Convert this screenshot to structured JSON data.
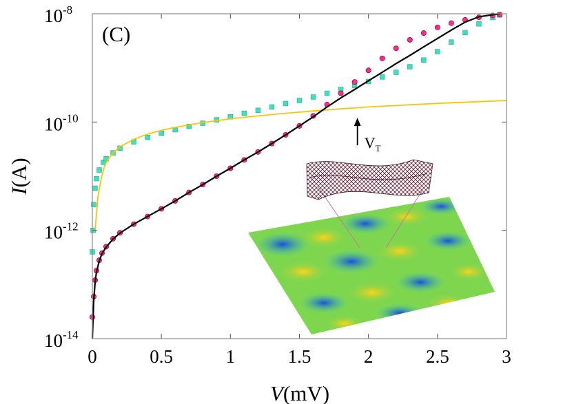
{
  "chart_data": {
    "type": "scatter",
    "panel_label": "(C)",
    "xlabel_var": "V",
    "xlabel_unit": "(mV)",
    "ylabel_var": "I",
    "ylabel_unit": "(A)",
    "xlim": [
      0,
      3
    ],
    "ylim": [
      1e-14,
      1e-08
    ],
    "y_scale": "log",
    "x_ticks": [
      "0",
      "0.5",
      "1",
      "1.5",
      "2",
      "2.5",
      "3"
    ],
    "x_tick_values": [
      0,
      0.5,
      1,
      1.5,
      2,
      2.5,
      3
    ],
    "y_ticks": [
      {
        "base": "10",
        "exp": "-14",
        "value": 1e-14
      },
      {
        "base": "10",
        "exp": "-12",
        "value": 1e-12
      },
      {
        "base": "10",
        "exp": "-10",
        "value": 1e-10
      },
      {
        "base": "10",
        "exp": "-8",
        "value": 1e-08
      }
    ],
    "annotation": {
      "text_main": "V",
      "text_sub": "T",
      "x": 1.92,
      "y": 1.2e-10
    },
    "colors": {
      "pink": "#ff2e8b",
      "cyan": "#3ee0c0",
      "yellow": "#f5c800",
      "black": "#000000"
    },
    "series": [
      {
        "marker": "circle",
        "color": "#ff2e8b",
        "x": [
          0.0,
          0.01,
          0.02,
          0.03,
          0.05,
          0.07,
          0.1,
          0.15,
          0.2,
          0.3,
          0.4,
          0.5,
          0.6,
          0.7,
          0.8,
          0.9,
          1.0,
          1.1,
          1.2,
          1.3,
          1.4,
          1.5,
          1.6,
          1.7,
          1.8,
          1.9,
          2.0,
          2.1,
          2.2,
          2.3,
          2.4,
          2.5,
          2.6,
          2.7,
          2.8,
          2.9,
          2.95
        ],
        "y": [
          2.5e-14,
          6e-14,
          1.2e-13,
          1.8e-13,
          2.8e-13,
          3.8e-13,
          5e-13,
          7e-13,
          9e-13,
          1.3e-12,
          1.8e-12,
          2.5e-12,
          3.5e-12,
          5e-12,
          7e-12,
          1e-11,
          1.4e-11,
          2e-11,
          2.8e-11,
          4e-11,
          5.8e-11,
          8.5e-11,
          1.3e-10,
          2.1e-10,
          3.4e-10,
          5.5e-10,
          9e-10,
          1.5e-09,
          2.3e-09,
          3.3e-09,
          4.4e-09,
          5.6e-09,
          6.7e-09,
          7.7e-09,
          8.6e-09,
          9.3e-09,
          9.6e-09
        ]
      },
      {
        "marker": "square",
        "color": "#3ee0c0",
        "x": [
          0.0,
          0.005,
          0.01,
          0.02,
          0.03,
          0.05,
          0.08,
          0.1,
          0.15,
          0.2,
          0.3,
          0.4,
          0.5,
          0.6,
          0.7,
          0.8,
          0.9,
          1.0,
          1.1,
          1.2,
          1.3,
          1.4,
          1.5,
          1.6,
          1.7,
          1.8,
          1.9,
          2.0,
          2.1,
          2.2,
          2.3,
          2.4,
          2.5,
          2.6,
          2.7,
          2.8,
          2.9,
          2.95
        ],
        "y": [
          4e-13,
          1e-12,
          3e-12,
          6e-12,
          9e-12,
          1.3e-11,
          1.8e-11,
          2.1e-11,
          2.7e-11,
          3.3e-11,
          4.3e-11,
          5.2e-11,
          6.2e-11,
          7.2e-11,
          8.3e-11,
          9.5e-11,
          1.1e-10,
          1.25e-10,
          1.45e-10,
          1.65e-10,
          1.9e-10,
          2.2e-10,
          2.5e-10,
          2.9e-10,
          3.4e-10,
          4e-10,
          4.7e-10,
          5.6e-10,
          6.8e-10,
          8.3e-10,
          1.05e-09,
          1.4e-09,
          2e-09,
          3e-09,
          4.5e-09,
          6.5e-09,
          8.5e-09,
          9.5e-09
        ]
      },
      {
        "marker": "line",
        "color": "#f5c800",
        "x": [
          0.02,
          0.04,
          0.06,
          0.08,
          0.1,
          0.15,
          0.2,
          0.3,
          0.4,
          0.5,
          0.6,
          0.8,
          1.0,
          1.2,
          1.4,
          1.6,
          1.8,
          2.0,
          2.2,
          2.4,
          2.6,
          2.8,
          3.0
        ],
        "y": [
          1e-12,
          4e-12,
          8e-12,
          1.3e-11,
          1.8e-11,
          2.7e-11,
          3.5e-11,
          4.8e-11,
          6e-11,
          7e-11,
          8e-11,
          9.8e-11,
          1.15e-10,
          1.3e-10,
          1.45e-10,
          1.6e-10,
          1.75e-10,
          1.9e-10,
          2.02e-10,
          2.15e-10,
          2.27e-10,
          2.38e-10,
          2.5e-10
        ]
      },
      {
        "marker": "line",
        "color": "#000000",
        "x": [
          0.0,
          0.01,
          0.02,
          0.03,
          0.05,
          0.07,
          0.1,
          0.15,
          0.2,
          0.3,
          0.4,
          0.5,
          0.6,
          0.7,
          0.8,
          0.9,
          1.0,
          1.1,
          1.2,
          1.3,
          1.4,
          1.5,
          1.6,
          1.7,
          1.8,
          1.9,
          2.0,
          2.1,
          2.2,
          2.3,
          2.4,
          2.5,
          2.6,
          2.7,
          2.8,
          2.9,
          2.95
        ],
        "y": [
          1e-14,
          5e-14,
          1.1e-13,
          1.7e-13,
          2.7e-13,
          3.7e-13,
          4.9e-13,
          6.9e-13,
          8.9e-13,
          1.3e-12,
          1.8e-12,
          2.5e-12,
          3.5e-12,
          5e-12,
          7e-12,
          1e-11,
          1.4e-11,
          2e-11,
          2.8e-11,
          4e-11,
          5.8e-11,
          8.5e-11,
          1.25e-10,
          1.9e-10,
          2.8e-10,
          4e-10,
          5.8e-10,
          8.3e-10,
          1.2e-09,
          1.7e-09,
          2.45e-09,
          3.5e-09,
          5e-09,
          7e-09,
          8.8e-09,
          9.6e-09,
          9.9e-09
        ]
      }
    ]
  }
}
